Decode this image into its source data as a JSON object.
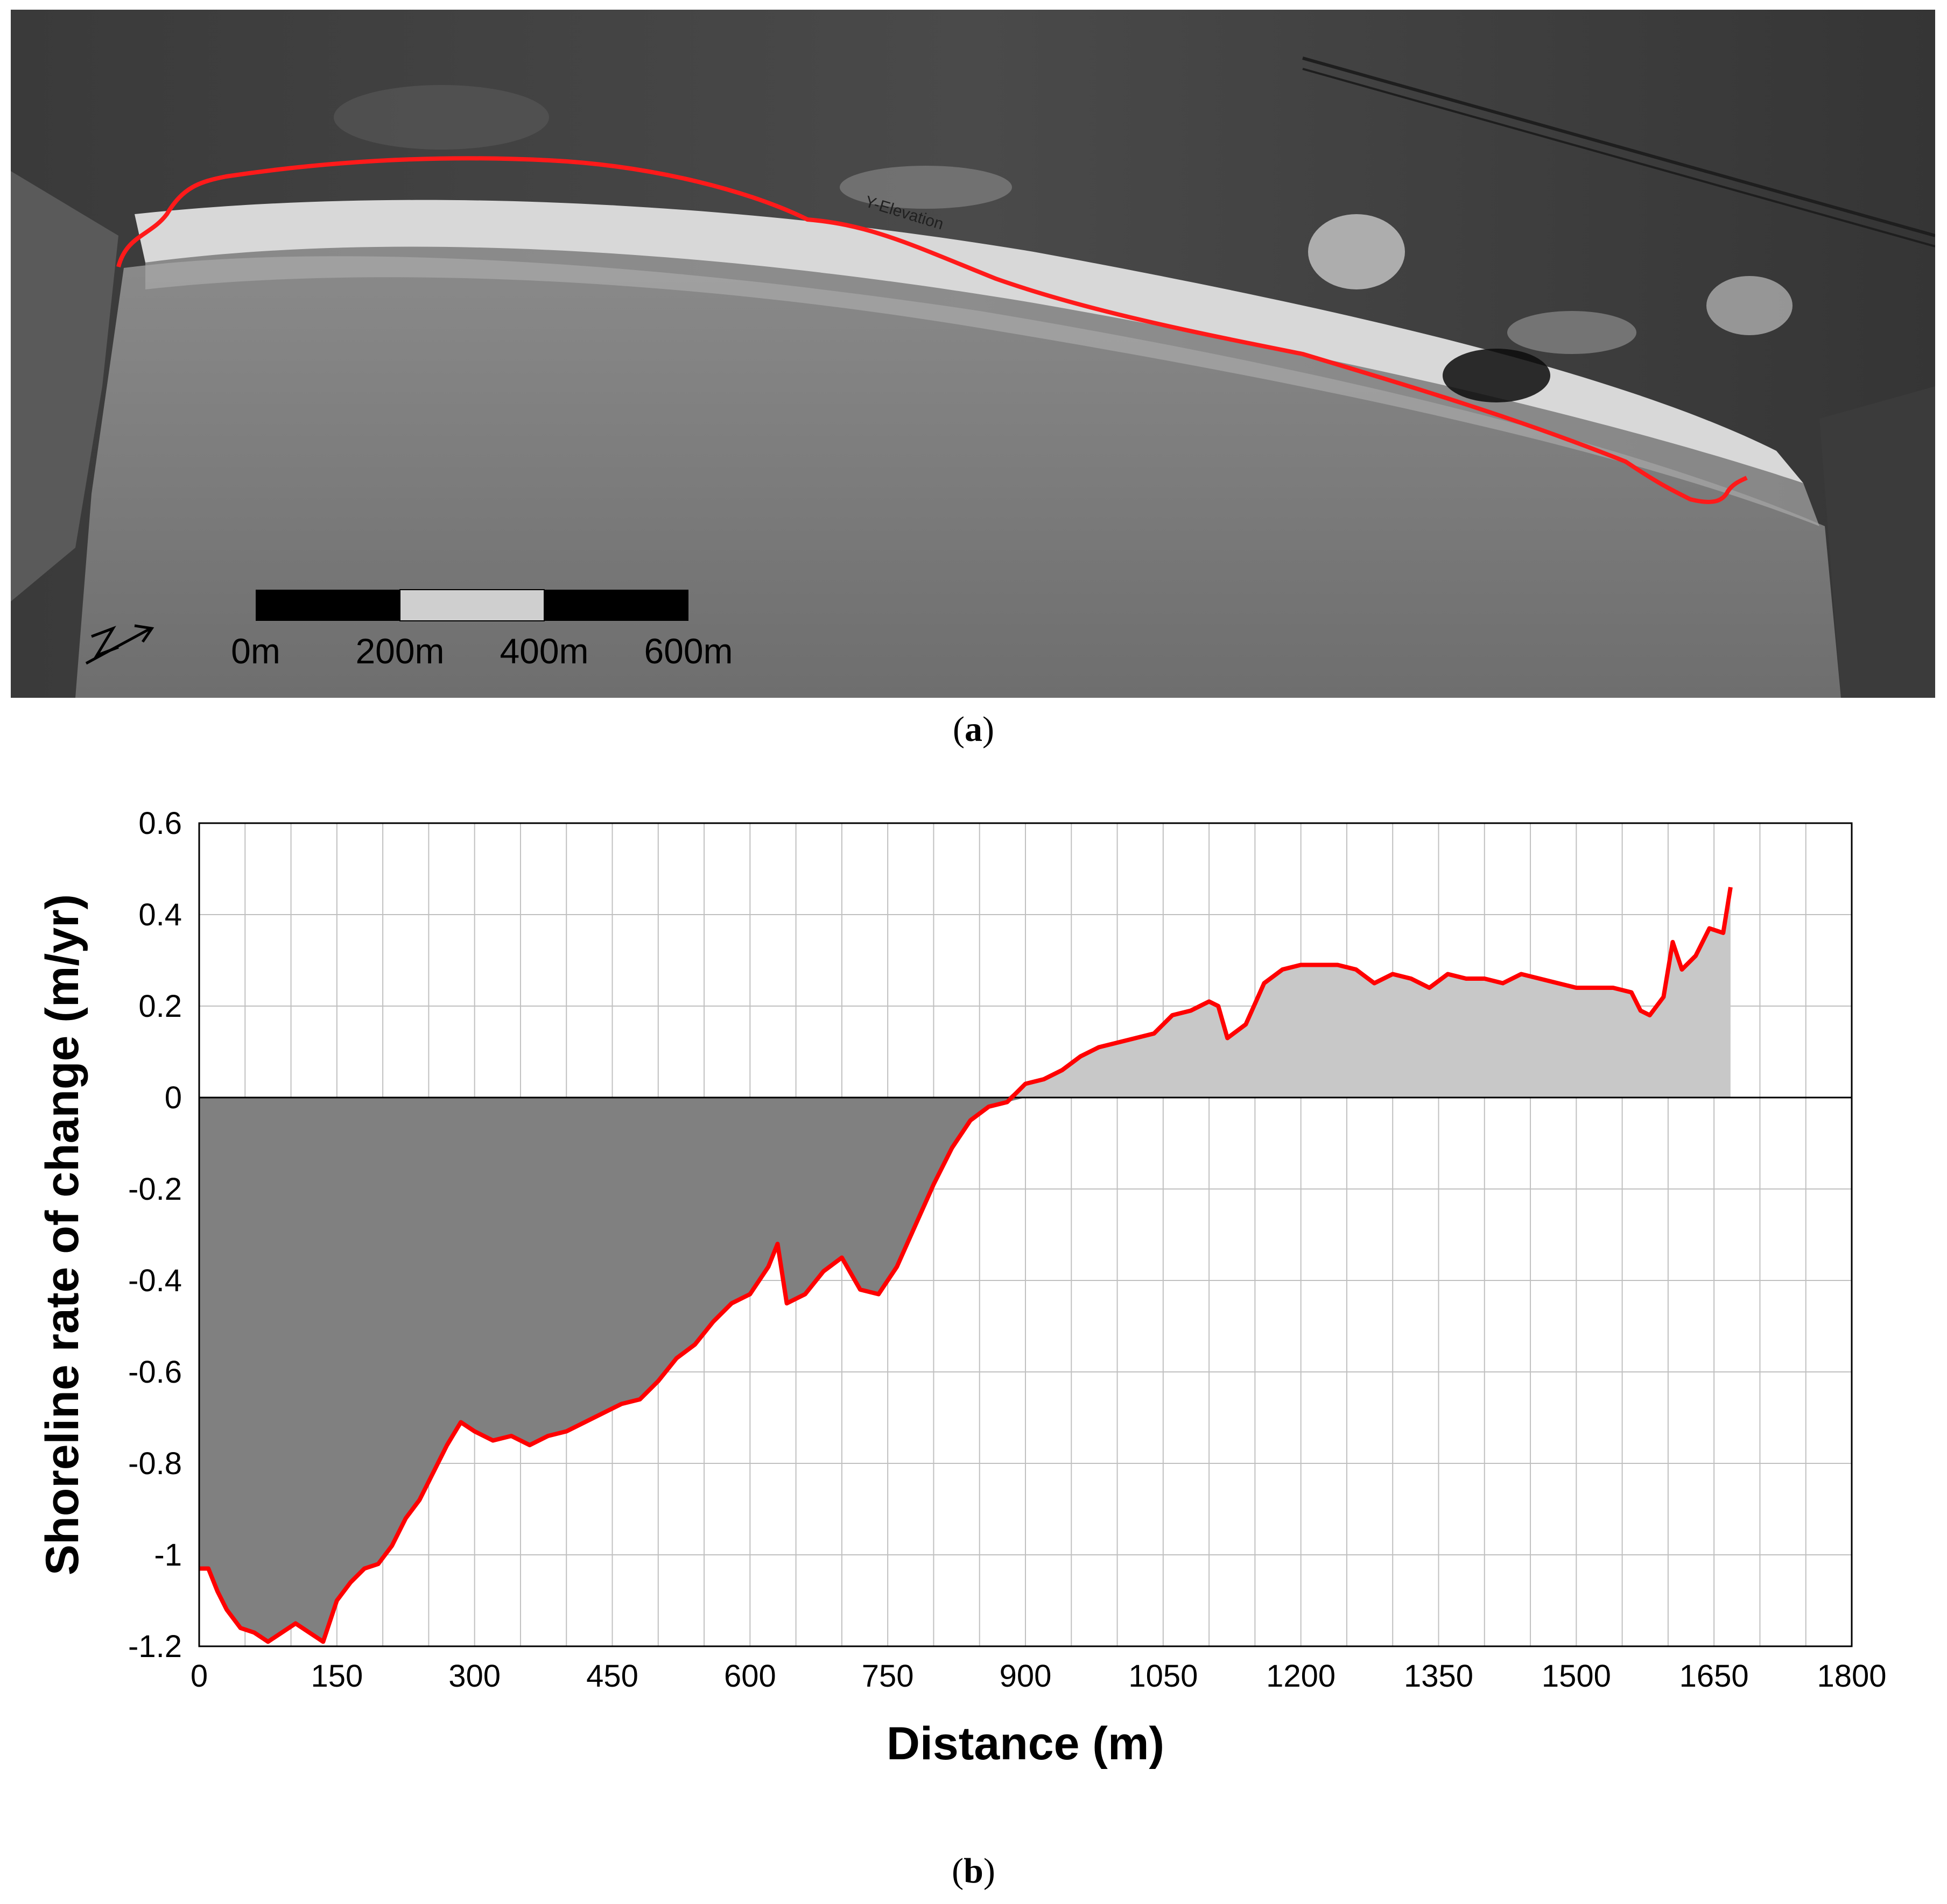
{
  "panel_a": {
    "caption_label": "a",
    "line_label": "Y-Elevation",
    "scale_bar": {
      "ticks": [
        "0m",
        "200m",
        "400m",
        "600m"
      ]
    },
    "colors": {
      "shoreline": "#ff1a1a",
      "scale_dark": "#000000",
      "scale_light": "#cfcfcf"
    },
    "icons": [
      "north-arrow-icon"
    ]
  },
  "panel_b": {
    "caption_label": "b"
  },
  "chart_data": {
    "type": "area",
    "xlabel": "Distance (m)",
    "ylabel": "Shoreline rate of change (m/yr)",
    "xlim": [
      0,
      1800
    ],
    "ylim": [
      -1.2,
      0.6
    ],
    "xticks": [
      0,
      150,
      300,
      450,
      600,
      750,
      900,
      1050,
      1200,
      1350,
      1500,
      1650,
      1800
    ],
    "yticks": [
      0.6,
      0.4,
      0.2,
      0,
      -0.2,
      -0.4,
      -0.6,
      -0.8,
      -1,
      -1.2
    ],
    "xtick_labels": [
      "0",
      "150",
      "300",
      "450",
      "600",
      "750",
      "900",
      "1050",
      "1200",
      "1350",
      "1500",
      "1650",
      "1800"
    ],
    "ytick_labels": [
      "0.6",
      "0.4",
      "0.2",
      "0",
      "-0.2",
      "-0.4",
      "-0.6",
      "-0.8",
      "-1",
      "-1.2"
    ],
    "grid": true,
    "colors": {
      "line": "#ff0000",
      "negative_fill": "#808080",
      "positive_fill": "#c8c8c8",
      "grid": "#c0c0c0"
    },
    "x": [
      0,
      10,
      20,
      30,
      45,
      60,
      75,
      90,
      105,
      120,
      135,
      150,
      165,
      180,
      195,
      210,
      225,
      240,
      255,
      270,
      285,
      300,
      320,
      340,
      360,
      380,
      400,
      420,
      440,
      460,
      480,
      500,
      520,
      540,
      560,
      580,
      600,
      620,
      630,
      640,
      660,
      680,
      700,
      720,
      740,
      760,
      780,
      800,
      820,
      840,
      860,
      880,
      900,
      920,
      940,
      960,
      980,
      1000,
      1020,
      1040,
      1060,
      1080,
      1100,
      1110,
      1120,
      1140,
      1160,
      1180,
      1200,
      1220,
      1240,
      1260,
      1280,
      1300,
      1320,
      1340,
      1360,
      1380,
      1400,
      1420,
      1440,
      1460,
      1480,
      1500,
      1520,
      1540,
      1560,
      1570,
      1580,
      1595,
      1605,
      1615,
      1630,
      1645,
      1660,
      1668
    ],
    "values": [
      -1.03,
      -1.03,
      -1.08,
      -1.12,
      -1.16,
      -1.17,
      -1.19,
      -1.17,
      -1.15,
      -1.17,
      -1.19,
      -1.1,
      -1.06,
      -1.03,
      -1.02,
      -0.98,
      -0.92,
      -0.88,
      -0.82,
      -0.76,
      -0.71,
      -0.73,
      -0.75,
      -0.74,
      -0.76,
      -0.74,
      -0.73,
      -0.71,
      -0.69,
      -0.67,
      -0.66,
      -0.62,
      -0.57,
      -0.54,
      -0.49,
      -0.45,
      -0.43,
      -0.37,
      -0.32,
      -0.45,
      -0.43,
      -0.38,
      -0.35,
      -0.42,
      -0.43,
      -0.37,
      -0.28,
      -0.19,
      -0.11,
      -0.05,
      -0.02,
      -0.01,
      0.03,
      0.04,
      0.06,
      0.09,
      0.11,
      0.12,
      0.13,
      0.14,
      0.18,
      0.19,
      0.21,
      0.2,
      0.13,
      0.16,
      0.25,
      0.28,
      0.29,
      0.29,
      0.29,
      0.28,
      0.25,
      0.27,
      0.26,
      0.24,
      0.27,
      0.26,
      0.26,
      0.25,
      0.27,
      0.26,
      0.25,
      0.24,
      0.24,
      0.24,
      0.23,
      0.19,
      0.18,
      0.22,
      0.34,
      0.28,
      0.31,
      0.37,
      0.36,
      0.46
    ]
  }
}
